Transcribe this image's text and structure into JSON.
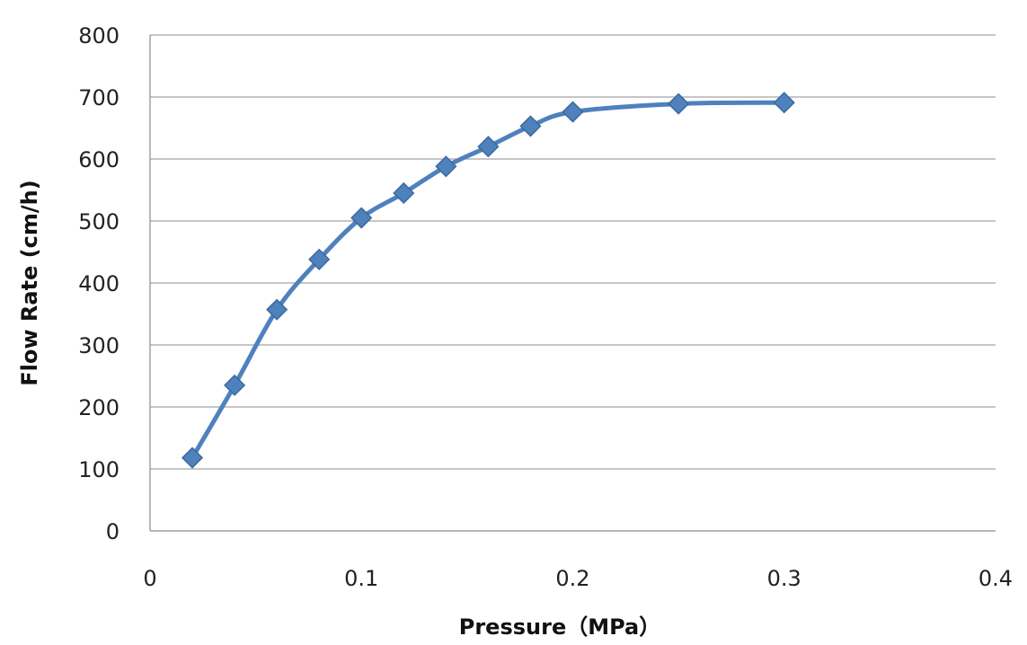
{
  "chart_data": {
    "type": "line",
    "title": "",
    "xlabel": "Pressure（MPa）",
    "ylabel": "Flow Rate (cm/h)",
    "xlim": [
      0,
      0.4
    ],
    "ylim": [
      0,
      800
    ],
    "x_ticks": [
      0,
      0.1,
      0.2,
      0.3,
      0.4
    ],
    "x_tick_labels": [
      "0",
      "0.1",
      "0.2",
      "0.3",
      "0.4"
    ],
    "y_ticks": [
      0,
      100,
      200,
      300,
      400,
      500,
      600,
      700,
      800
    ],
    "y_tick_labels": [
      "0",
      "100",
      "200",
      "300",
      "400",
      "500",
      "600",
      "700",
      "800"
    ],
    "grid": "horizontal",
    "legend": "none",
    "marker": "diamond",
    "series_color": "#4f81bd",
    "series_stroke": "#3a6a9e",
    "series": [
      {
        "x": [
          0.02,
          0.04,
          0.06,
          0.08,
          0.1,
          0.12,
          0.14,
          0.16,
          0.18,
          0.2,
          0.25,
          0.3
        ],
        "values": [
          118,
          235,
          357,
          438,
          505,
          545,
          588,
          620,
          653,
          676,
          689,
          691
        ]
      }
    ]
  }
}
